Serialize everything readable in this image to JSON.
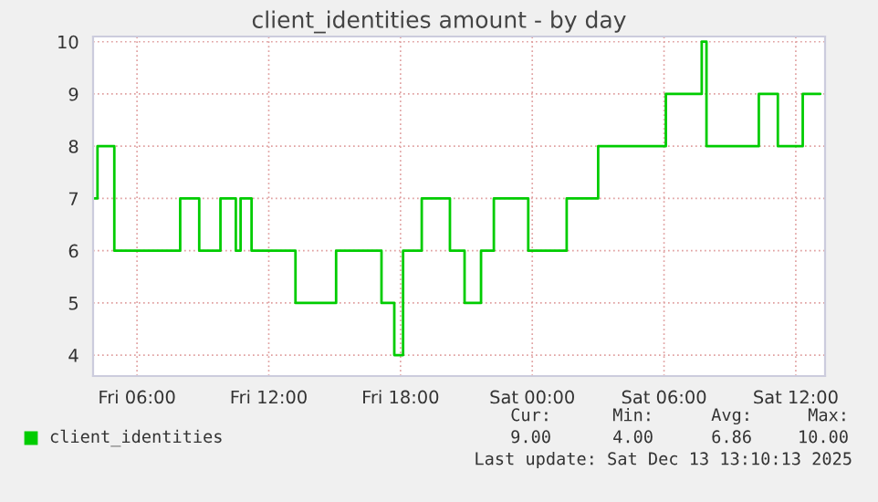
{
  "chart_data": {
    "type": "step",
    "title": "client_identities amount - by day",
    "x": [
      "2025-12-12T04:04",
      "2025-12-12T04:12",
      "2025-12-12T04:48",
      "2025-12-12T04:58",
      "2025-12-12T07:52",
      "2025-12-12T07:58",
      "2025-12-12T08:43",
      "2025-12-12T08:50",
      "2025-12-12T09:41",
      "2025-12-12T09:48",
      "2025-12-12T10:23",
      "2025-12-12T10:30",
      "2025-12-12T10:35",
      "2025-12-12T10:43",
      "2025-12-12T11:07",
      "2025-12-12T11:13",
      "2025-12-12T13:07",
      "2025-12-12T13:13",
      "2025-12-12T14:58",
      "2025-12-12T15:04",
      "2025-12-12T17:02",
      "2025-12-12T17:08",
      "2025-12-12T17:35",
      "2025-12-12T17:43",
      "2025-12-12T17:56",
      "2025-12-12T18:07",
      "2025-12-12T18:52",
      "2025-12-12T18:58",
      "2025-12-12T20:05",
      "2025-12-12T20:15",
      "2025-12-12T20:47",
      "2025-12-12T20:55",
      "2025-12-12T21:32",
      "2025-12-12T21:40",
      "2025-12-12T22:07",
      "2025-12-12T22:15",
      "2025-12-12T23:40",
      "2025-12-12T23:49",
      "2025-12-13T01:26",
      "2025-12-13T01:34",
      "2025-12-13T02:52",
      "2025-12-13T03:00",
      "2025-12-13T05:58",
      "2025-12-13T06:05",
      "2025-12-13T07:38",
      "2025-12-13T07:43",
      "2025-12-13T07:56",
      "2025-12-13T10:11",
      "2025-12-13T10:19",
      "2025-12-13T11:05",
      "2025-12-13T11:11",
      "2025-12-13T12:11",
      "2025-12-13T12:19",
      "2025-12-13T13:07"
    ],
    "series": [
      {
        "name": "client_identities",
        "color": "#00cc00",
        "values": [
          7,
          8,
          8,
          6,
          6,
          7,
          7,
          6,
          6,
          7,
          7,
          6,
          6,
          7,
          7,
          6,
          6,
          5,
          5,
          6,
          6,
          5,
          5,
          4,
          4,
          6,
          6,
          7,
          7,
          6,
          6,
          5,
          5,
          6,
          6,
          7,
          7,
          6,
          6,
          7,
          7,
          8,
          8,
          9,
          9,
          10,
          8,
          8,
          9,
          9,
          8,
          8,
          9,
          9
        ]
      }
    ],
    "xlim": [
      "2025-12-12T04:00",
      "2025-12-13T13:20"
    ],
    "xticks": [
      {
        "value": "2025-12-12T06:00",
        "label": "Fri 06:00"
      },
      {
        "value": "2025-12-12T12:00",
        "label": "Fri 12:00"
      },
      {
        "value": "2025-12-12T18:00",
        "label": "Fri 18:00"
      },
      {
        "value": "2025-12-13T00:00",
        "label": "Sat 00:00"
      },
      {
        "value": "2025-12-13T06:00",
        "label": "Sat 06:00"
      },
      {
        "value": "2025-12-13T12:00",
        "label": "Sat 12:00"
      }
    ],
    "ylim": [
      3.6,
      10.1
    ],
    "yticks": [
      4,
      5,
      6,
      7,
      8,
      9,
      10
    ],
    "grid": true,
    "legend": "bottom left",
    "annotations": [
      "Cur:",
      "Min:",
      "Avg:",
      "Max:",
      "9.00",
      "4.00",
      "6.86",
      "10.00",
      "Last update: Sat Dec 13 13:10:13 2025"
    ]
  }
}
